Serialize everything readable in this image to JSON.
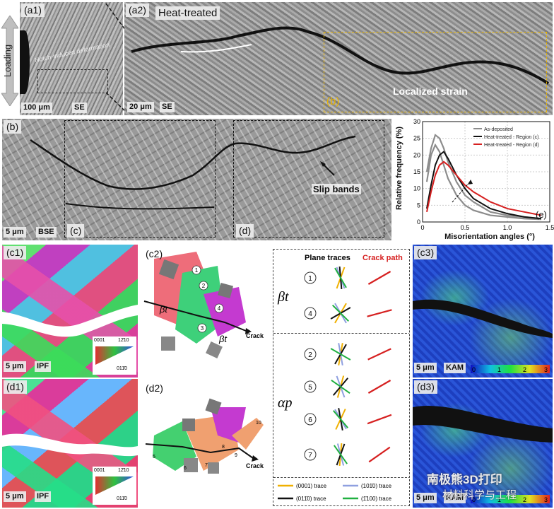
{
  "top": {
    "loading": "Loading",
    "a1": {
      "label": "(a1)",
      "scale": "100 μm",
      "mode": "SE",
      "annotation": "Notch-induced deformation"
    },
    "a2": {
      "label": "(a2)",
      "title": "Heat-treated",
      "scale": "20 μm",
      "mode": "SE",
      "strain": "Localized strain",
      "box_label": "(b)"
    }
  },
  "b": {
    "label": "(b)",
    "scale": "5 μm",
    "mode": "BSE",
    "slip": "Slip bands",
    "c_box": "(c)",
    "d_box": "(d)"
  },
  "chart": {
    "label": "(e)",
    "colors": {
      "as": "#8c8c8c",
      "c": "#111111",
      "d": "#d62020"
    }
  },
  "chart_data": {
    "type": "line",
    "xlabel": "Misorientation angles (°)",
    "ylabel": "Relative frequency (%)",
    "xlim": [
      0,
      1.5
    ],
    "ylim": [
      0,
      30
    ],
    "xticks": [
      "0",
      "0.5",
      "1.0",
      "1.5"
    ],
    "yticks": [
      "0",
      "5",
      "10",
      "15",
      "20",
      "25",
      "30"
    ],
    "legend_position": "top-right",
    "series": [
      {
        "name": "As-deposited",
        "x": [
          0.05,
          0.1,
          0.15,
          0.2,
          0.25,
          0.3,
          0.4,
          0.5,
          0.6,
          0.8,
          1.0,
          1.2,
          1.4
        ],
        "values": [
          15,
          22,
          26,
          25,
          22,
          18,
          12,
          8,
          6,
          3,
          2,
          1.5,
          1
        ]
      },
      {
        "name": "As-deposited",
        "x": [
          0.05,
          0.1,
          0.15,
          0.2,
          0.25,
          0.3,
          0.4,
          0.5,
          0.6,
          0.8,
          1.0,
          1.2,
          1.4
        ],
        "values": [
          12,
          20,
          23,
          21,
          17,
          13,
          8,
          5,
          3.5,
          2,
          1.5,
          1,
          0.8
        ]
      },
      {
        "name": "Heat-treated - Region (c)",
        "x": [
          0.05,
          0.1,
          0.15,
          0.2,
          0.25,
          0.3,
          0.4,
          0.5,
          0.6,
          0.8,
          1.0,
          1.2,
          1.4
        ],
        "values": [
          4,
          11,
          17,
          20,
          21,
          19,
          14,
          10,
          7,
          4,
          2.5,
          1.5,
          1
        ]
      },
      {
        "name": "Heat-treated - Region (d)",
        "x": [
          0.05,
          0.1,
          0.15,
          0.2,
          0.25,
          0.3,
          0.4,
          0.5,
          0.6,
          0.8,
          1.0,
          1.2,
          1.4
        ],
        "values": [
          3,
          9,
          14,
          17,
          18,
          17,
          14,
          11,
          9,
          6,
          4,
          3,
          2
        ]
      }
    ]
  },
  "c1": {
    "label": "(c1)",
    "scale": "5 μm",
    "mode": "IPF",
    "key_0001": "0001",
    "key_1210": "12̄10",
    "key_0110": "011̄0"
  },
  "d1": {
    "label": "(d1)",
    "scale": "5 μm",
    "mode": "IPF",
    "key_0001": "0001",
    "key_1210": "12̄10",
    "key_0110": "011̄0"
  },
  "c2": {
    "label": "(c2)",
    "beta": "βt",
    "crack": "Crack",
    "n1": "1",
    "n2": "2",
    "n3": "3",
    "n4": "4"
  },
  "d2": {
    "label": "(d2)",
    "crack": "Crack",
    "n5": "5",
    "n6": "6",
    "n7": "7",
    "n8": "8",
    "n9": "9",
    "n10": "10"
  },
  "traces": {
    "plane_traces": "Plane traces",
    "crack_path": "Crack path",
    "beta": "βt",
    "alpha": "αp",
    "rows": [
      "1",
      "4",
      "2",
      "5",
      "6",
      "7"
    ],
    "legend": [
      "(0001) trace",
      "(101̄0) trace",
      "(011̄0) trace",
      "(1̄100) trace"
    ]
  },
  "c3": {
    "label": "(c3)",
    "scale": "5 μm",
    "mode": "KAM",
    "ticks": [
      "0",
      "1",
      "2",
      "3"
    ]
  },
  "d3": {
    "label": "(d3)",
    "scale": "5 μm",
    "mode": "KAM",
    "ticks": [
      "0",
      "1",
      "2",
      "3"
    ]
  },
  "watermark": {
    "line1": "南极熊3D打印",
    "line2": "材料科学与工程"
  }
}
